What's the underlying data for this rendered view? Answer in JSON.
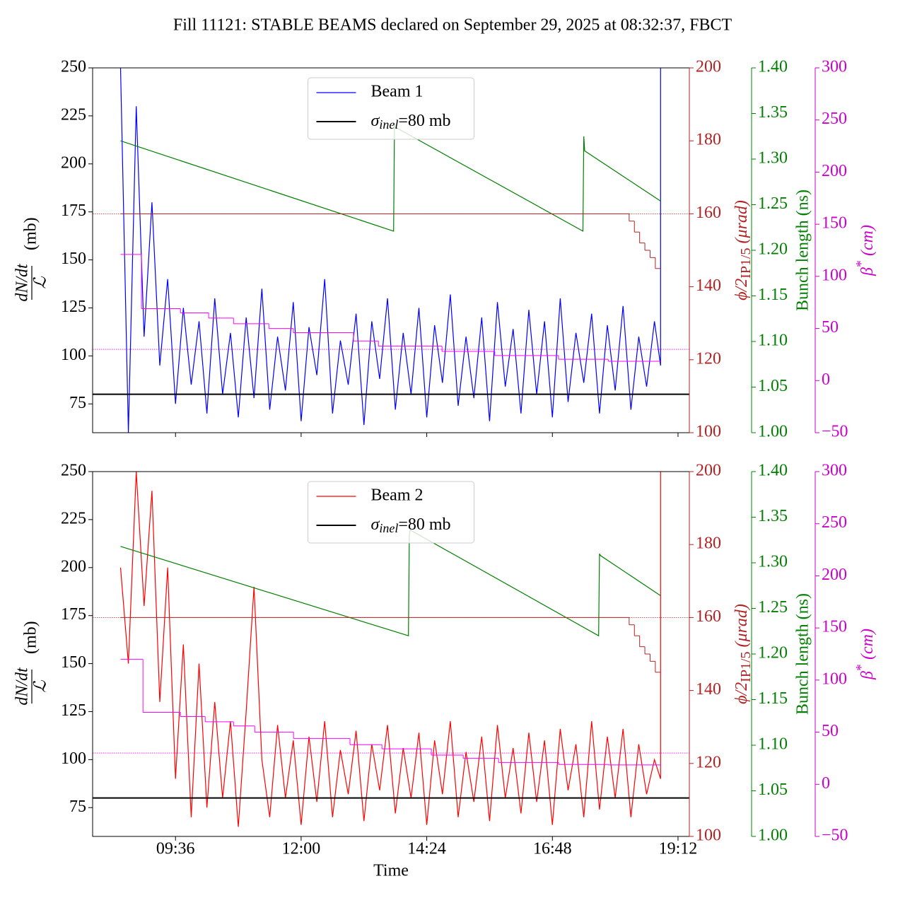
{
  "chart_data": [
    {
      "type": "line",
      "title": "Fill 11121: STABLE BEAMS declared on September 29, 2025 at 08:32:37, FBCT",
      "xlim": [
        481,
        1165
      ],
      "ylim": [
        60,
        250
      ],
      "yticks": [
        75,
        100,
        125,
        150,
        175,
        200,
        225,
        250
      ],
      "y2lim": [
        100,
        200
      ],
      "y2ticks": [
        100,
        120,
        140,
        160,
        180,
        200
      ],
      "y2color": "#b22222",
      "y3lim": [
        1.0,
        1.4
      ],
      "y3ticks": [
        {
          "value": 1.0,
          "label": "1.00"
        },
        {
          "value": 1.05,
          "label": "1.05"
        },
        {
          "value": 1.1,
          "label": "1.10"
        },
        {
          "value": 1.15,
          "label": "1.15"
        },
        {
          "value": 1.2,
          "label": "1.20"
        },
        {
          "value": 1.25,
          "label": "1.25"
        },
        {
          "value": 1.3,
          "label": "1.30"
        },
        {
          "value": 1.35,
          "label": "1.35"
        },
        {
          "value": 1.4,
          "label": "1.40"
        }
      ],
      "y3color": "#008000",
      "y4lim": [
        -50,
        300
      ],
      "y4ticks": [
        {
          "value": -50,
          "label": "−50"
        },
        0,
        50,
        100,
        150,
        200,
        250,
        300
      ],
      "y4color": "#cc00cc",
      "ylabel": {
        "numerator": "dN/dt",
        "denominator": "ℒ",
        "unit": "(mb)"
      },
      "y2label": [
        "ϕ/2",
        "IP1/5",
        " (μrad)"
      ],
      "y3label": "Bunch length (ns)",
      "y4label": [
        "β",
        "*",
        " (cm)"
      ],
      "legend": "upper center",
      "series": [
        {
          "name": "Beam 1",
          "color": "#0000ff",
          "x": [
            513,
            522,
            531,
            540,
            549,
            558,
            567,
            576,
            585,
            594,
            603,
            612,
            621,
            630,
            639,
            648,
            657,
            666,
            675,
            684,
            693,
            702,
            711,
            720,
            729,
            738,
            747,
            756,
            765,
            774,
            783,
            792,
            801,
            810,
            819,
            828,
            837,
            846,
            855,
            864,
            873,
            882,
            891,
            900,
            909,
            918,
            927,
            936,
            945,
            954,
            963,
            972,
            981,
            990,
            999,
            1008,
            1017,
            1026,
            1035,
            1044,
            1053,
            1062,
            1071,
            1080,
            1089,
            1098,
            1107,
            1116,
            1125,
            1132,
            1132
          ],
          "values": [
            250,
            60,
            230,
            110,
            180,
            95,
            140,
            75,
            125,
            85,
            118,
            70,
            130,
            80,
            112,
            68,
            120,
            78,
            135,
            72,
            110,
            82,
            128,
            66,
            115,
            90,
            140,
            70,
            108,
            85,
            122,
            64,
            118,
            88,
            130,
            72,
            112,
            80,
            125,
            68,
            116,
            86,
            132,
            74,
            110,
            78,
            120,
            66,
            128,
            84,
            114,
            70,
            124,
            80,
            118,
            68,
            130,
            76,
            112,
            86,
            122,
            70,
            116,
            82,
            126,
            72,
            110,
            84,
            118,
            95,
            250
          ]
        },
        {
          "name": [
            "σ",
            "inel",
            "=80 mb"
          ],
          "color": "#000000",
          "width": 2,
          "x": [
            481,
            1165
          ],
          "values": [
            80,
            80
          ]
        },
        {
          "axis": "y3",
          "color": "#008000",
          "x": [
            513,
            826,
            827,
            828,
            1043,
            1044,
            1045,
            1132
          ],
          "values": [
            1.32,
            1.221,
            1.339,
            1.335,
            1.221,
            1.325,
            1.309,
            1.254
          ]
        },
        {
          "axis": "y2",
          "color": "#b22222",
          "step": true,
          "x": [
            513,
            1096,
            1102,
            1108,
            1114,
            1120,
            1126,
            1132
          ],
          "values": [
            160,
            158,
            155,
            152,
            150,
            148,
            145,
            145
          ]
        },
        {
          "axis": "y4",
          "color": "#ff00ff",
          "step": true,
          "x": [
            513,
            537,
            581.7,
            614,
            642.5,
            683,
            711,
            780,
            808.6,
            881.5,
            942,
            1015,
            1072,
            1132
          ],
          "values": [
            121,
            69,
            65,
            60,
            54.5,
            50,
            46,
            38,
            33,
            28,
            24,
            20.5,
            18.5,
            18.5
          ]
        }
      ],
      "hlines": [
        {
          "axis": "y2",
          "value": 160,
          "color": "#b22222"
        },
        {
          "axis": "y4",
          "value": 30,
          "color": "#ff00ff"
        }
      ]
    },
    {
      "type": "line",
      "xlabel": "Time",
      "xlim": [
        481,
        1165
      ],
      "xticks": [
        {
          "value": 576,
          "label": "09:36"
        },
        {
          "value": 720,
          "label": "12:00"
        },
        {
          "value": 864,
          "label": "14:24"
        },
        {
          "value": 1008,
          "label": "16:48"
        },
        {
          "value": 1152,
          "label": "19:12"
        }
      ],
      "ylim": [
        60,
        250
      ],
      "yticks": [
        75,
        100,
        125,
        150,
        175,
        200,
        225,
        250
      ],
      "y2lim": [
        100,
        200
      ],
      "y2ticks": [
        100,
        120,
        140,
        160,
        180,
        200
      ],
      "y2color": "#b22222",
      "y3lim": [
        1.0,
        1.4
      ],
      "y3ticks": [
        {
          "value": 1.0,
          "label": "1.00"
        },
        {
          "value": 1.05,
          "label": "1.05"
        },
        {
          "value": 1.1,
          "label": "1.10"
        },
        {
          "value": 1.15,
          "label": "1.15"
        },
        {
          "value": 1.2,
          "label": "1.20"
        },
        {
          "value": 1.25,
          "label": "1.25"
        },
        {
          "value": 1.3,
          "label": "1.30"
        },
        {
          "value": 1.35,
          "label": "1.35"
        },
        {
          "value": 1.4,
          "label": "1.40"
        }
      ],
      "y3color": "#008000",
      "y4lim": [
        -50,
        300
      ],
      "y4ticks": [
        {
          "value": -50,
          "label": "−50"
        },
        0,
        50,
        100,
        150,
        200,
        250,
        300
      ],
      "y4color": "#cc00cc",
      "ylabel": {
        "numerator": "dN/dt",
        "denominator": "ℒ",
        "unit": "(mb)"
      },
      "y2label": [
        "ϕ/2",
        "IP1/5",
        " (μrad)"
      ],
      "y3label": "Bunch length (ns)",
      "y4label": [
        "β",
        "*",
        " (cm)"
      ],
      "legend": "upper center",
      "series": [
        {
          "name": "Beam 2",
          "color": "#ff0000",
          "x": [
            513,
            522,
            531,
            540,
            549,
            558,
            567,
            576,
            585,
            594,
            603,
            612,
            621,
            630,
            639,
            648,
            657,
            666,
            675,
            684,
            693,
            702,
            711,
            720,
            729,
            738,
            747,
            756,
            765,
            774,
            783,
            792,
            801,
            810,
            819,
            828,
            837,
            846,
            855,
            864,
            873,
            882,
            891,
            900,
            909,
            918,
            927,
            936,
            945,
            954,
            963,
            972,
            981,
            990,
            999,
            1008,
            1017,
            1026,
            1035,
            1044,
            1053,
            1062,
            1071,
            1080,
            1089,
            1098,
            1107,
            1116,
            1125,
            1132,
            1132
          ],
          "values": [
            200,
            150,
            250,
            180,
            240,
            130,
            200,
            90,
            160,
            70,
            150,
            75,
            130,
            80,
            120,
            65,
            125,
            190,
            100,
            70,
            118,
            80,
            110,
            66,
            112,
            78,
            120,
            70,
            105,
            82,
            115,
            68,
            108,
            84,
            118,
            72,
            106,
            80,
            114,
            66,
            110,
            82,
            120,
            70,
            104,
            78,
            112,
            68,
            118,
            80,
            106,
            72,
            114,
            78,
            110,
            66,
            116,
            84,
            108,
            70,
            120,
            74,
            112,
            80,
            116,
            70,
            108,
            82,
            100,
            90,
            250
          ]
        },
        {
          "name": [
            "σ",
            "inel",
            "=80 mb"
          ],
          "color": "#000000",
          "width": 2,
          "x": [
            481,
            1165
          ],
          "values": [
            80,
            80
          ]
        },
        {
          "axis": "y3",
          "color": "#008000",
          "x": [
            513,
            843,
            844,
            845,
            1061,
            1062,
            1063,
            1132
          ],
          "values": [
            1.318,
            1.22,
            1.33,
            1.336,
            1.22,
            1.31,
            1.308,
            1.264
          ]
        },
        {
          "axis": "y2",
          "color": "#b22222",
          "step": true,
          "x": [
            513,
            1096,
            1102,
            1108,
            1114,
            1120,
            1126,
            1132
          ],
          "values": [
            160,
            158,
            155,
            152,
            150,
            148,
            145,
            145
          ]
        },
        {
          "axis": "y4",
          "color": "#ff00ff",
          "step": true,
          "x": [
            513,
            538.7,
            581.7,
            610,
            642.5,
            666.8,
            711.3,
            776,
            812.6,
            869.3,
            905.8,
            946.3,
            1015.2,
            1072,
            1132
          ],
          "values": [
            120,
            69,
            65,
            60,
            56,
            50,
            44,
            38,
            34,
            28,
            25,
            21,
            19,
            18.6,
            18.6
          ]
        }
      ],
      "hlines": [
        {
          "axis": "y2",
          "value": 160,
          "color": "#b22222"
        },
        {
          "axis": "y4",
          "value": 30,
          "color": "#ff00ff"
        }
      ]
    }
  ]
}
